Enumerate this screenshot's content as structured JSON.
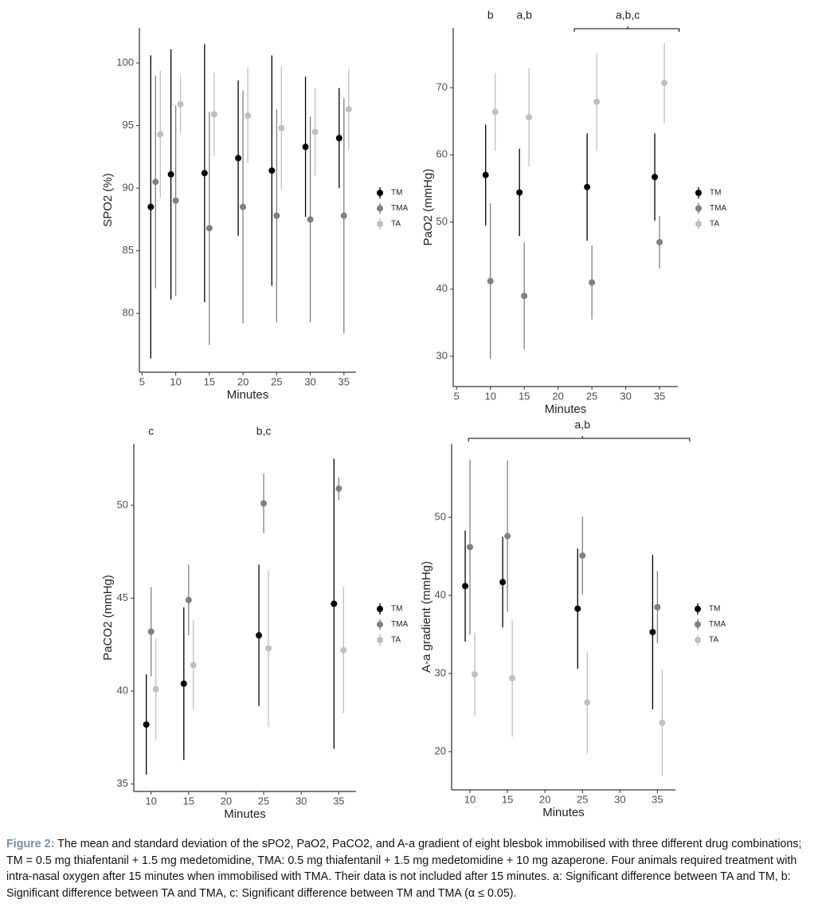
{
  "charts": [
    {
      "chart_data": {
        "type": "scatter",
        "xlabel": "Minutes",
        "ylabel": "SPO2 (%)",
        "x": [
          7,
          10,
          15,
          20,
          25,
          30,
          35
        ],
        "xlim": [
          4.6,
          36.8
        ],
        "xticks": [
          5,
          10,
          15,
          20,
          25,
          30,
          35
        ],
        "ylim": [
          75.3,
          102.8
        ],
        "yticks": [
          80,
          85,
          90,
          95,
          100
        ],
        "legend": "right",
        "series": [
          {
            "name": "TM",
            "color": "#000000",
            "values": [
              88.5,
              91.1,
              91.2,
              92.4,
              91.4,
              93.3,
              94.0
            ],
            "errors": [
              12.1,
              10,
              10.3,
              6.2,
              9.2,
              5.6,
              4
            ]
          },
          {
            "name": "TMA",
            "color": "#808080",
            "values": [
              90.5,
              89.0,
              86.8,
              88.5,
              87.8,
              87.5,
              87.8
            ],
            "errors": [
              8.5,
              7.6,
              9.3,
              9.3,
              8.5,
              8.2,
              9.4
            ]
          },
          {
            "name": "TA",
            "color": "#bfbfbf",
            "values": [
              94.3,
              96.7,
              95.9,
              95.8,
              94.8,
              94.5,
              96.3
            ],
            "errors": [
              5.1,
              2.3,
              3.3,
              3.8,
              4.9,
              3.5,
              3.2
            ]
          }
        ],
        "annotations": []
      }
    },
    {
      "chart_data": {
        "type": "scatter",
        "xlabel": "Minutes",
        "ylabel": "PaO2 (mmHg)",
        "x": [
          10,
          15,
          25,
          35
        ],
        "xlim": [
          4.5,
          37.7
        ],
        "xticks": [
          5,
          10,
          15,
          20,
          25,
          30,
          35
        ],
        "ylim": [
          25.5,
          78.9
        ],
        "yticks": [
          30,
          40,
          50,
          60,
          70
        ],
        "legend": "right",
        "series": [
          {
            "name": "TM",
            "color": "#000000",
            "values": [
              57,
              54.4,
              55.2,
              56.7
            ],
            "errors": [
              7.5,
              6.5,
              8,
              6.5
            ]
          },
          {
            "name": "TMA",
            "color": "#808080",
            "values": [
              41.2,
              39,
              41,
              47
            ],
            "errors": [
              11.6,
              8,
              5.5,
              3.9
            ]
          },
          {
            "name": "TA",
            "color": "#bfbfbf",
            "values": [
              66.4,
              65.6,
              67.9,
              70.7
            ],
            "errors": [
              5.8,
              7.3,
              7.3,
              6
            ]
          }
        ],
        "annotations": [
          {
            "text": "b",
            "x": 10
          },
          {
            "text": "a,b",
            "x": 15
          },
          {
            "text": "a,b,c",
            "x": 30.3,
            "span": [
              22.4,
              37.9
            ]
          }
        ]
      }
    },
    {
      "chart_data": {
        "type": "scatter",
        "xlabel": "Minutes",
        "ylabel": "PaCO2 (mmHg)",
        "x": [
          10,
          15,
          25,
          35
        ],
        "xlim": [
          7.7,
          37.3
        ],
        "xticks": [
          10,
          15,
          20,
          25,
          30,
          35
        ],
        "ylim": [
          34.6,
          53.3
        ],
        "yticks": [
          35,
          40,
          45,
          50
        ],
        "legend": "right",
        "series": [
          {
            "name": "TM",
            "color": "#000000",
            "values": [
              38.2,
              40.4,
              43.0,
              44.7
            ],
            "errors": [
              2.7,
              4.1,
              3.8,
              7.8
            ]
          },
          {
            "name": "TMA",
            "color": "#808080",
            "values": [
              43.2,
              44.9,
              50.1,
              50.9
            ],
            "errors": [
              2.4,
              1.9,
              1.6,
              0.6
            ]
          },
          {
            "name": "TA",
            "color": "#bfbfbf",
            "values": [
              40.1,
              41.4,
              42.3,
              42.2
            ],
            "errors": [
              2.7,
              2.4,
              4.2,
              3.4
            ]
          }
        ],
        "annotations": [
          {
            "text": "c",
            "x": 10
          },
          {
            "text": "b,c",
            "x": 25
          }
        ]
      }
    },
    {
      "chart_data": {
        "type": "scatter",
        "xlabel": "Minutes",
        "ylabel": "A-a gradient (mmHg)",
        "x": [
          10,
          15,
          25,
          35
        ],
        "xlim": [
          7.55,
          37.4
        ],
        "xticks": [
          10,
          15,
          20,
          25,
          30,
          35
        ],
        "ylim": [
          15.1,
          59.4
        ],
        "yticks": [
          20,
          30,
          40,
          50
        ],
        "legend": "right",
        "series": [
          {
            "name": "TM",
            "color": "#000000",
            "values": [
              41.2,
              41.7,
              38.3,
              35.3
            ],
            "errors": [
              7.1,
              5.8,
              7.7,
              9.9
            ]
          },
          {
            "name": "TMA",
            "color": "#808080",
            "values": [
              46.2,
              47.6,
              45.1,
              38.5
            ],
            "errors": [
              11.2,
              9.7,
              5,
              4.6
            ]
          },
          {
            "name": "TA",
            "color": "#bfbfbf",
            "values": [
              29.9,
              29.4,
              26.3,
              23.7
            ],
            "errors": [
              5.3,
              7.5,
              6.5,
              6.8
            ]
          }
        ],
        "annotations": [
          {
            "text": "a,b",
            "x": 25,
            "span": [
              9.8,
              39.3
            ]
          }
        ]
      }
    }
  ],
  "caption": {
    "label": "Figure 2:",
    "text": "The mean and standard deviation of the sPO2, PaO2, PaCO2, and A-a gradient of eight blesbok immobilised with three different drug combinations; TM = 0.5 mg thiafentanil + 1.5 mg medetomidine, TMA: 0.5 mg thiafentanil + 1.5 mg medetomidine + 10 mg azaperone. Four animals required treatment with intra-nasal oxygen after 15 minutes when immobilised with TMA. Their data is not included after 15 minutes. a: Significant difference between TA and TM, b: Significant difference between TA and TMA, c: Significant difference between TM and TMA (α ≤ 0.05)."
  }
}
